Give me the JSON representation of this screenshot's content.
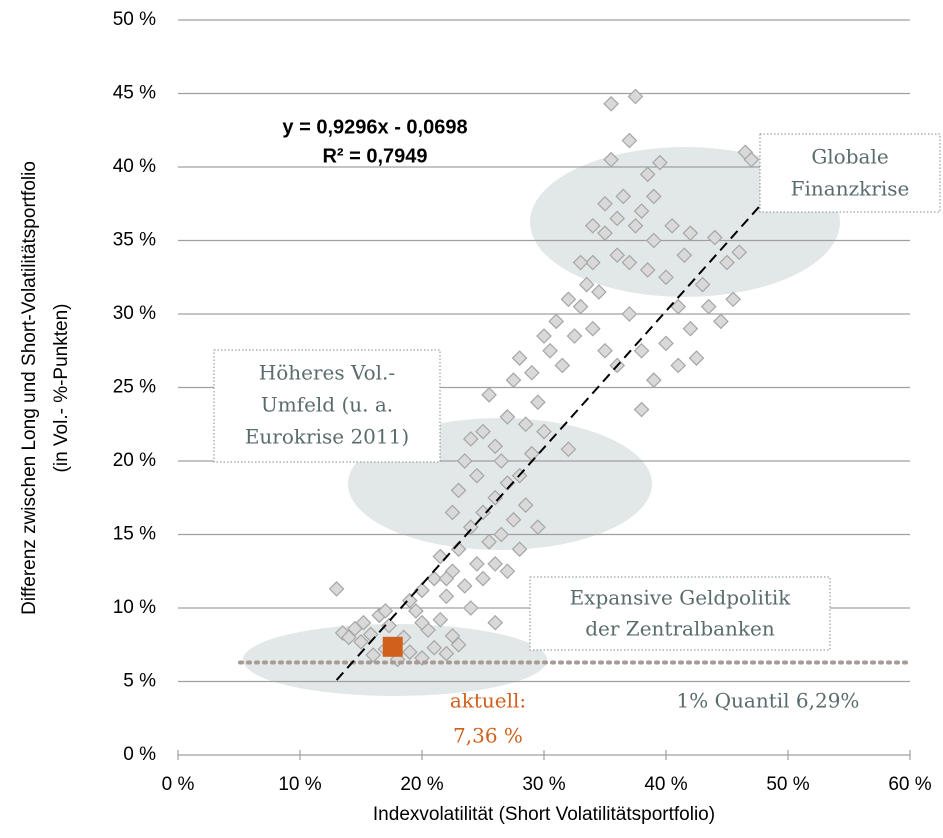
{
  "chart_data": {
    "type": "scatter",
    "x_label": "Indexvolatilität (Short Volatilitätsportfolio)",
    "y_label": [
      "Differenz zwischen Long und Short-Volatilitätsportfolio",
      "(in Vol.- %-Punkten)"
    ],
    "xlim": [
      0,
      60
    ],
    "ylim": [
      0,
      50
    ],
    "xticks": [
      {
        "value": 0,
        "label": "0 %"
      },
      {
        "value": 10,
        "label": "10 %"
      },
      {
        "value": 20,
        "label": "20 %"
      },
      {
        "value": 30,
        "label": "30 %"
      },
      {
        "value": 40,
        "label": "40 %"
      },
      {
        "value": 50,
        "label": "50 %"
      },
      {
        "value": 60,
        "label": "60 %"
      }
    ],
    "yticks": [
      {
        "value": 0,
        "label": "0 %"
      },
      {
        "value": 5,
        "label": "5 %"
      },
      {
        "value": 10,
        "label": "10 %"
      },
      {
        "value": 15,
        "label": "15 %"
      },
      {
        "value": 20,
        "label": "20 %"
      },
      {
        "value": 25,
        "label": "25 %"
      },
      {
        "value": 30,
        "label": "30 %"
      },
      {
        "value": 35,
        "label": "35 %"
      },
      {
        "value": 40,
        "label": "40 %"
      },
      {
        "value": 45,
        "label": "45 %"
      },
      {
        "value": 50,
        "label": "50 %"
      }
    ],
    "grid": true,
    "series": [
      {
        "color": "#d9d9d9",
        "edge_color": "#a6a6a6",
        "x": [
          13,
          13.5,
          14,
          14.5,
          15,
          15.2,
          15.8,
          16,
          16.5,
          17,
          17.3,
          18,
          18.5,
          19,
          19.5,
          20,
          20.5,
          21,
          21.5,
          22,
          22.5,
          23,
          19,
          20,
          21,
          21.5,
          22,
          22.5,
          23,
          23.5,
          24,
          24.5,
          25,
          25,
          25.5,
          26,
          26,
          26.5,
          27,
          27,
          27.5,
          28,
          28,
          28.5,
          29,
          29.5,
          23,
          23.5,
          24,
          22.5,
          24.5,
          25,
          25.5,
          26,
          26.5,
          27,
          27.5,
          28,
          28.5,
          29,
          29.5,
          30,
          30,
          30.5,
          31,
          31.5,
          32,
          32,
          32.5,
          33,
          33.5,
          34,
          34,
          34.5,
          35,
          35,
          35.5,
          35.5,
          36,
          36,
          36.5,
          37,
          37,
          37.5,
          37.5,
          38,
          38,
          38.5,
          38.5,
          39,
          39,
          39.5,
          40,
          40,
          40.5,
          41,
          41,
          41.5,
          42,
          42,
          42.5,
          43,
          43.5,
          44,
          44.5,
          45,
          45.5,
          46,
          46.5,
          47,
          36,
          37,
          35,
          34,
          33,
          38,
          39,
          26,
          24,
          22,
          20,
          17
        ],
        "values": [
          11.3,
          8.3,
          8.0,
          8.6,
          7.7,
          9.0,
          8.2,
          6.8,
          9.5,
          7.2,
          8.8,
          6.5,
          8.0,
          7.0,
          9.8,
          6.6,
          8.5,
          7.3,
          9.2,
          6.9,
          8.1,
          7.5,
          10.5,
          11.2,
          12.0,
          13.5,
          10.8,
          12.5,
          14.0,
          11.5,
          15.5,
          13.0,
          16.5,
          12.0,
          14.5,
          17.5,
          13.0,
          15.0,
          18.5,
          12.5,
          16.0,
          19.0,
          14.0,
          17.0,
          20.5,
          15.5,
          18.0,
          20.0,
          21.5,
          16.5,
          19.0,
          22.0,
          24.5,
          21.0,
          20.0,
          23.0,
          25.5,
          27.0,
          22.5,
          26.0,
          24.0,
          28.5,
          22.0,
          27.5,
          29.5,
          26.5,
          20.8,
          31.0,
          28.5,
          30.5,
          32.0,
          29.0,
          33.5,
          31.5,
          37.5,
          27.5,
          40.5,
          44.3,
          34.0,
          26.5,
          38.0,
          41.8,
          30.0,
          44.8,
          36.0,
          23.5,
          27.5,
          39.5,
          33.0,
          35.0,
          25.5,
          40.3,
          32.5,
          28.0,
          36.0,
          30.5,
          26.5,
          34.0,
          29.0,
          35.5,
          27.0,
          32.0,
          30.5,
          35.2,
          29.5,
          33.5,
          31.0,
          34.2,
          41.0,
          40.5,
          36.5,
          33.5,
          35.5,
          36.0,
          33.5,
          37.0,
          38.0,
          9.0,
          10.0,
          12.0,
          9.0,
          9.8
        ]
      }
    ],
    "trendline": {
      "x": [
        13,
        47.8
      ],
      "y": [
        5.1,
        37.45
      ],
      "color": "#000000"
    },
    "equation": [
      "y = 0,9296x - 0,0698",
      "R² = 0,7949"
    ],
    "quantile": {
      "value": 6.29,
      "label": "1% Quantil 6,29%",
      "color": "#a89a94"
    },
    "current": {
      "x": 17.6,
      "value": 7.36,
      "label": [
        "aktuell:",
        "7,36 %"
      ],
      "color": "#d0601c"
    },
    "annotations": [
      {
        "text": [
          "Globale",
          "Finanzkrise"
        ]
      },
      {
        "text": [
          "Höheres Vol.-",
          "Umfeld (u. a.",
          "Eurokrise 2011)"
        ]
      },
      {
        "text": [
          "Expansive Geldpolitik",
          "der Zentralbanken"
        ]
      }
    ]
  }
}
